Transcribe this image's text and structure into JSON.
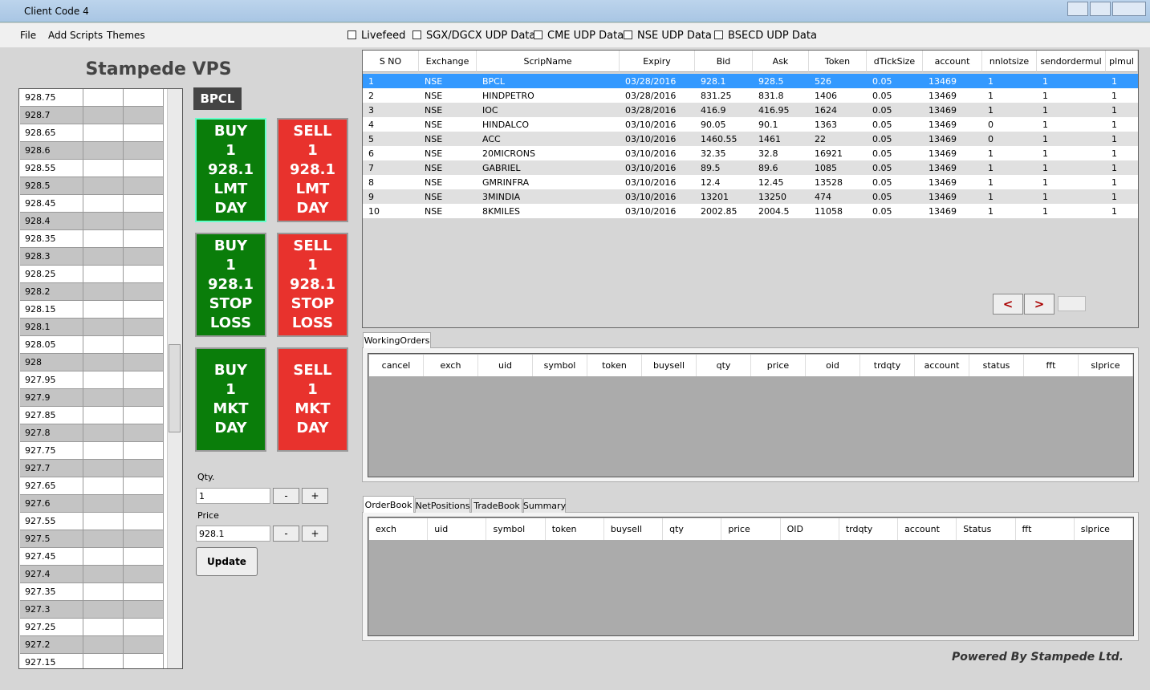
{
  "window": {
    "title": "Client Code 4"
  },
  "menu": [
    "File",
    "Add Scripts",
    "Themes"
  ],
  "feeds": [
    "Livefeed",
    "SGX/DGCX UDP Data",
    "CME UDP Data",
    "NSE UDP Data",
    "BSECD UDP Data"
  ],
  "app_title": "Stampede VPS",
  "ladder": [
    "928.75",
    "928.7",
    "928.65",
    "928.6",
    "928.55",
    "928.5",
    "928.45",
    "928.4",
    "928.35",
    "928.3",
    "928.25",
    "928.2",
    "928.15",
    "928.1",
    "928.05",
    "928",
    "927.95",
    "927.9",
    "927.85",
    "927.8",
    "927.75",
    "927.7",
    "927.65",
    "927.6",
    "927.55",
    "927.5",
    "927.45",
    "927.4",
    "927.35",
    "927.3",
    "927.25",
    "927.2",
    "927.15"
  ],
  "symbol": "BPCL",
  "order_buttons": [
    {
      "lines": [
        "BUY",
        "1",
        "928.1",
        "LMT",
        "DAY"
      ]
    },
    {
      "lines": [
        "SELL",
        "1",
        "928.1",
        "LMT",
        "DAY"
      ]
    },
    {
      "lines": [
        "BUY",
        "1",
        "928.1",
        "STOP",
        "LOSS"
      ]
    },
    {
      "lines": [
        "SELL",
        "1",
        "928.1",
        "STOP",
        "LOSS"
      ]
    },
    {
      "lines": [
        "BUY",
        "1",
        "MKT",
        "DAY"
      ]
    },
    {
      "lines": [
        "SELL",
        "1",
        "MKT",
        "DAY"
      ]
    }
  ],
  "qty": {
    "label": "Qty.",
    "value": "1",
    "minus": "-",
    "plus": "+"
  },
  "price": {
    "label": "Price",
    "value": "928.1",
    "minus": "-",
    "plus": "+"
  },
  "update": "Update",
  "scrips": {
    "headers": [
      "S NO",
      "Exchange",
      "ScripName",
      "Expiry",
      "Bid",
      "Ask",
      "Token",
      "dTickSize",
      "account",
      "nnlotsize",
      "sendordermul",
      "plmul"
    ],
    "rows": [
      [
        "1",
        "NSE",
        "BPCL",
        "03/28/2016",
        "928.1",
        "928.5",
        "526",
        "0.05",
        "13469",
        "1",
        "1",
        "1"
      ],
      [
        "2",
        "NSE",
        "HINDPETRO",
        "03/28/2016",
        "831.25",
        "831.8",
        "1406",
        "0.05",
        "13469",
        "1",
        "1",
        "1"
      ],
      [
        "3",
        "NSE",
        "IOC",
        "03/28/2016",
        "416.9",
        "416.95",
        "1624",
        "0.05",
        "13469",
        "1",
        "1",
        "1"
      ],
      [
        "4",
        "NSE",
        "HINDALCO",
        "03/10/2016",
        "90.05",
        "90.1",
        "1363",
        "0.05",
        "13469",
        "0",
        "1",
        "1"
      ],
      [
        "5",
        "NSE",
        "ACC",
        "03/10/2016",
        "1460.55",
        "1461",
        "22",
        "0.05",
        "13469",
        "0",
        "1",
        "1"
      ],
      [
        "6",
        "NSE",
        "20MICRONS",
        "03/10/2016",
        "32.35",
        "32.8",
        "16921",
        "0.05",
        "13469",
        "1",
        "1",
        "1"
      ],
      [
        "7",
        "NSE",
        "GABRIEL",
        "03/10/2016",
        "89.5",
        "89.6",
        "1085",
        "0.05",
        "13469",
        "1",
        "1",
        "1"
      ],
      [
        "8",
        "NSE",
        "GMRINFRA",
        "03/10/2016",
        "12.4",
        "12.45",
        "13528",
        "0.05",
        "13469",
        "1",
        "1",
        "1"
      ],
      [
        "9",
        "NSE",
        "3MINDIA",
        "03/10/2016",
        "13201",
        "13250",
        "474",
        "0.05",
        "13469",
        "1",
        "1",
        "1"
      ],
      [
        "10",
        "NSE",
        "8KMILES",
        "03/10/2016",
        "2002.85",
        "2004.5",
        "11058",
        "0.05",
        "13469",
        "1",
        "1",
        "1"
      ]
    ]
  },
  "pager": [
    "<",
    ">"
  ],
  "working_orders": {
    "tab": "WorkingOrders",
    "headers": [
      "cancel",
      "exch",
      "uid",
      "symbol",
      "token",
      "buysell",
      "qty",
      "price",
      "oid",
      "trdqty",
      "account",
      "status",
      "fft",
      "slprice"
    ]
  },
  "order_panel": {
    "tabs": [
      "OrderBook",
      "NetPositions",
      "TradeBook",
      "Summary"
    ],
    "headers": [
      "exch",
      "uid",
      "symbol",
      "token",
      "buysell",
      "qty",
      "price",
      "OID",
      "trdqty",
      "account",
      "Status",
      "fft",
      "slprice"
    ]
  },
  "footer": "Powered By Stampede Ltd."
}
